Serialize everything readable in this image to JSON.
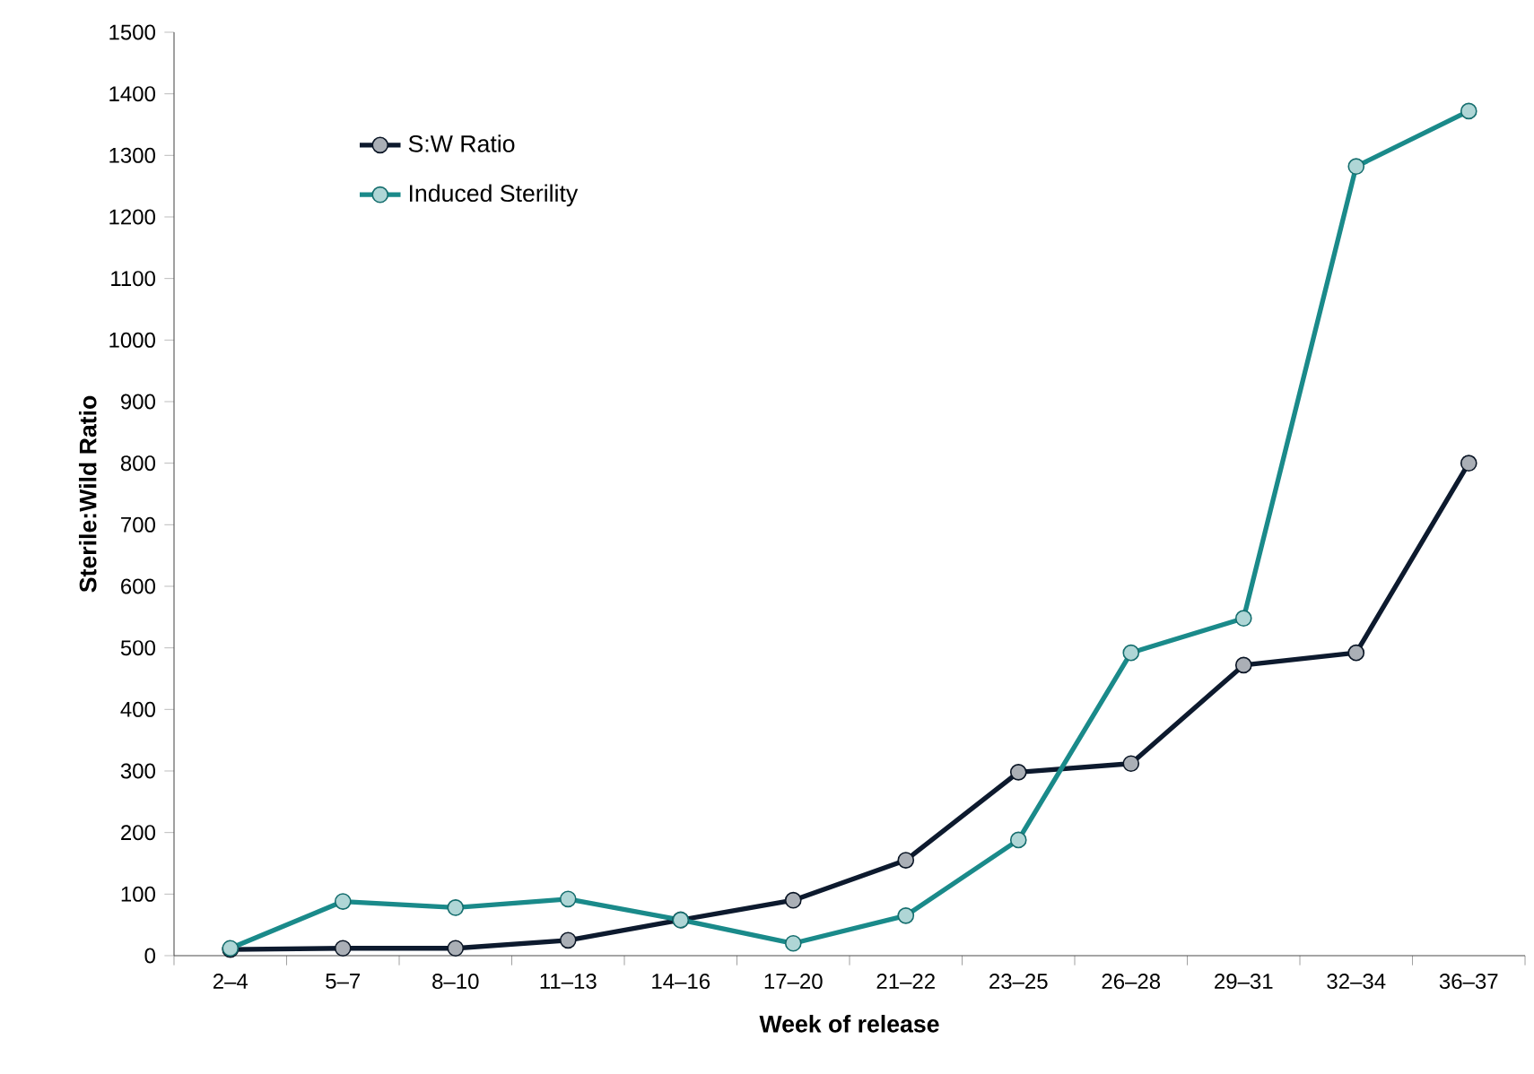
{
  "chart_data": {
    "type": "line",
    "xlabel": "Week of release",
    "ylabel": "Sterile:Wild Ratio",
    "categories": [
      "2–4",
      "5–7",
      "8–10",
      "11–13",
      "14–16",
      "17–20",
      "21–22",
      "23–25",
      "26–28",
      "29–31",
      "32–34",
      "36–37"
    ],
    "series": [
      {
        "name": "S:W Ratio",
        "color": "#0d1a2e",
        "values": [
          10,
          12,
          12,
          25,
          58,
          90,
          155,
          298,
          312,
          472,
          492,
          800
        ]
      },
      {
        "name": "Induced Sterility",
        "color": "#1a8a8a",
        "values": [
          12,
          88,
          78,
          92,
          58,
          20,
          65,
          188,
          492,
          548,
          1282,
          1372
        ]
      }
    ],
    "ylim": [
      0,
      1500
    ],
    "yticks": [
      0,
      100,
      200,
      300,
      400,
      500,
      600,
      700,
      800,
      900,
      1000,
      1100,
      1200,
      1300,
      1400,
      1500
    ],
    "grid": false,
    "legend": "top left",
    "marker": "circle",
    "line_style": "solid"
  }
}
